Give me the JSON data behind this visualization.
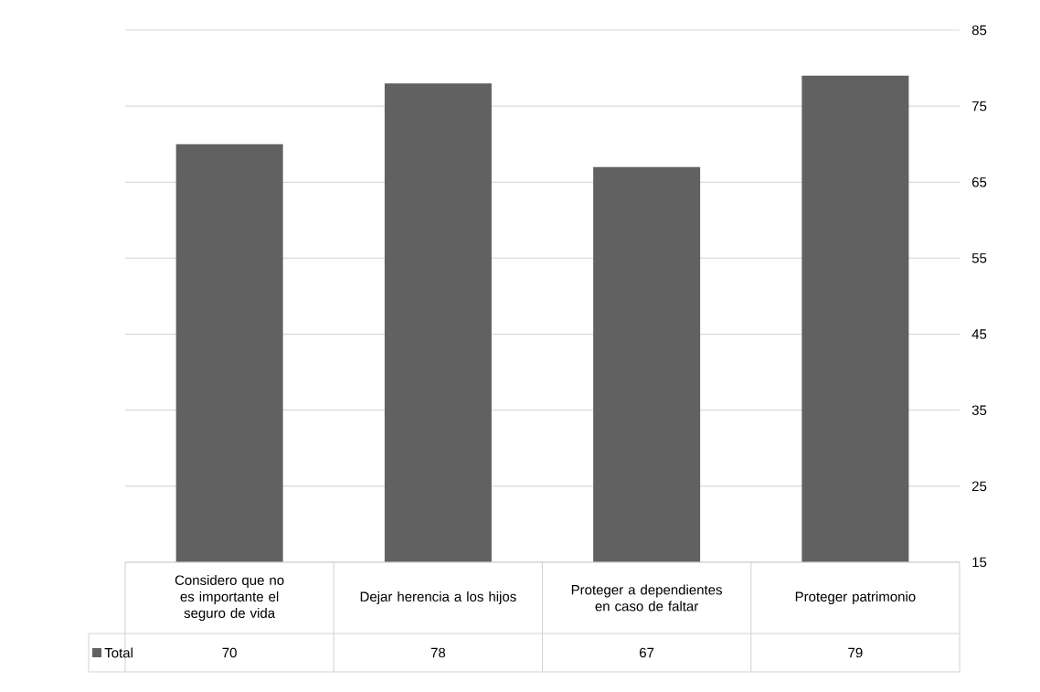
{
  "chart_data": {
    "type": "bar",
    "categories": [
      "Considero que no es importante el seguro de vida",
      "Dejar herencia a los hijos",
      "Proteger a dependientes en caso de faltar",
      "Proteger patrimonio"
    ],
    "series": [
      {
        "name": "Total",
        "color": "#616161",
        "values": [
          70,
          78,
          67,
          79
        ]
      }
    ],
    "ylim": [
      15,
      85
    ],
    "yticks": [
      15,
      25,
      35,
      45,
      55,
      65,
      75,
      85
    ],
    "grid": "y",
    "legend": "bottom",
    "data_labels": true
  }
}
